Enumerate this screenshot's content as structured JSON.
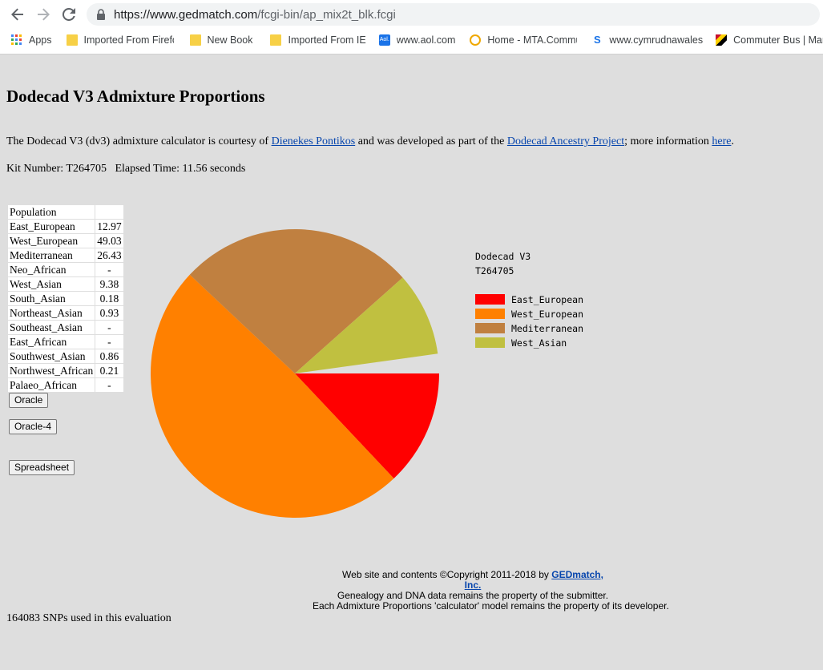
{
  "browser": {
    "url_host": "https://www.gedmatch.com",
    "url_path": "/fcgi-bin/ap_mix2t_blk.fcgi",
    "bookmarks": [
      {
        "label": "Apps",
        "icon": "apps-grid-icon"
      },
      {
        "label": "Imported From Firefo",
        "icon": "folder-icon"
      },
      {
        "label": "New Book",
        "icon": "folder-icon"
      },
      {
        "label": "Imported From IE",
        "icon": "folder-icon"
      },
      {
        "label": "www.aol.com",
        "icon": "aol-icon"
      },
      {
        "label": "Home - MTA.Commu",
        "icon": "mta-icon"
      },
      {
        "label": "www.cymrudnawales",
        "icon": "s-icon"
      },
      {
        "label": "Commuter Bus | Mar",
        "icon": "maryland-flag-icon"
      }
    ]
  },
  "page": {
    "title": "Dodecad V3 Admixture Proportions",
    "intro_pre": "The Dodecad V3 (dv3) admixture calculator is courtesy of ",
    "intro_link1": "Dienekes Pontikos",
    "intro_mid": " and was developed as part of the ",
    "intro_link2": "Dodecad Ancestry Project",
    "intro_post": "; more information ",
    "intro_link3": "here",
    "intro_end": ".",
    "kit_line": "Kit Number: T264705   Elapsed Time: 11.56 seconds",
    "table_header": "Population",
    "populations": [
      {
        "name": "East_European",
        "value": "12.97"
      },
      {
        "name": "West_European",
        "value": "49.03"
      },
      {
        "name": "Mediterranean",
        "value": "26.43"
      },
      {
        "name": "Neo_African",
        "value": "-"
      },
      {
        "name": "West_Asian",
        "value": "9.38"
      },
      {
        "name": "South_Asian",
        "value": "0.18"
      },
      {
        "name": "Northeast_Asian",
        "value": "0.93"
      },
      {
        "name": "Southeast_Asian",
        "value": "-"
      },
      {
        "name": "East_African",
        "value": "-"
      },
      {
        "name": "Southwest_Asian",
        "value": "0.86"
      },
      {
        "name": "Northwest_African",
        "value": "0.21"
      },
      {
        "name": "Palaeo_African",
        "value": "-"
      }
    ],
    "buttons": {
      "oracle": "Oracle",
      "oracle4": "Oracle-4",
      "spreadsheet": "Spreadsheet"
    },
    "footer": {
      "line1_pre": "Web site and contents ©Copyright 2011-2018 by ",
      "line1_link": "GEDmatch, Inc.",
      "line2": "Genealogy and DNA data remains the property of the submitter.",
      "line3": "Each Admixture Proportions 'calculator' model remains the property of its developer."
    },
    "snps_line": "164083 SNPs used in this evaluation"
  },
  "chart_data": {
    "type": "pie",
    "title": "Dodecad V3",
    "subtitle": "T264705",
    "labels": [
      "East_European",
      "West_European",
      "Mediterranean",
      "West_Asian"
    ],
    "values": [
      12.97,
      49.03,
      26.43,
      9.38
    ],
    "colors": [
      "#ff0000",
      "#ff8000",
      "#c08040",
      "#c0c040"
    ],
    "start_angle_deg": 0,
    "direction": "clockwise-from-3-oclock",
    "legend": "right"
  }
}
